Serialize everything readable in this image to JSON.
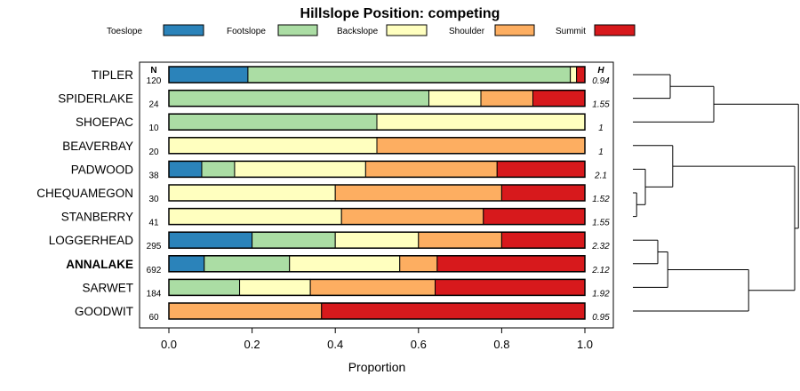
{
  "chart_data": {
    "type": "bar",
    "orientation": "horizontal",
    "stacked": true,
    "title": "Hillslope Position: competing",
    "xlabel": "Proportion",
    "ylabel": "",
    "xlim": [
      0,
      1
    ],
    "xticks": [
      "0.0",
      "0.2",
      "0.4",
      "0.6",
      "0.8",
      "1.0"
    ],
    "n_header": "N",
    "h_header": "H",
    "highlight": "ANNALAKE",
    "legend_position": "top",
    "series_names": [
      "Toeslope",
      "Footslope",
      "Backslope",
      "Shoulder",
      "Summit"
    ],
    "colors": [
      "#2b83ba",
      "#abdda4",
      "#ffffbf",
      "#fdae61",
      "#d7191c"
    ],
    "rows": [
      {
        "label": "TIPLER",
        "n": "120",
        "h": "0.94",
        "values": [
          0.19,
          0.775,
          0.015,
          0.0,
          0.02
        ]
      },
      {
        "label": "SPIDERLAKE",
        "n": "24",
        "h": "1.55",
        "values": [
          0.0,
          0.625,
          0.125,
          0.125,
          0.125
        ]
      },
      {
        "label": "SHOEPAC",
        "n": "10",
        "h": "1",
        "values": [
          0.0,
          0.5,
          0.5,
          0.0,
          0.0
        ]
      },
      {
        "label": "BEAVERBAY",
        "n": "20",
        "h": "1",
        "values": [
          0.0,
          0.0,
          0.5,
          0.5,
          0.0
        ]
      },
      {
        "label": "PADWOOD",
        "n": "38",
        "h": "2.1",
        "values": [
          0.079,
          0.079,
          0.315,
          0.316,
          0.211
        ]
      },
      {
        "label": "CHEQUAMEGON",
        "n": "30",
        "h": "1.52",
        "values": [
          0.0,
          0.0,
          0.4,
          0.4,
          0.2
        ]
      },
      {
        "label": "STANBERRY",
        "n": "41",
        "h": "1.55",
        "values": [
          0.0,
          0.0,
          0.415,
          0.341,
          0.244
        ]
      },
      {
        "label": "LOGGERHEAD",
        "n": "295",
        "h": "2.32",
        "values": [
          0.2,
          0.2,
          0.2,
          0.2,
          0.2
        ]
      },
      {
        "label": "ANNALAKE",
        "n": "692",
        "h": "2.12",
        "values": [
          0.085,
          0.205,
          0.265,
          0.09,
          0.355
        ]
      },
      {
        "label": "SARWET",
        "n": "184",
        "h": "1.92",
        "values": [
          0.0,
          0.17,
          0.17,
          0.3,
          0.36
        ]
      },
      {
        "label": "GOODWIT",
        "n": "60",
        "h": "0.95",
        "values": [
          0.0,
          0.0,
          0.0,
          0.367,
          0.633
        ]
      }
    ],
    "dendrogram": {
      "type": "hierarchical-clustering",
      "leaf_order": [
        "TIPLER",
        "SPIDERLAKE",
        "SHOEPAC",
        "BEAVERBAY",
        "PADWOOD",
        "CHEQUAMEGON",
        "STANBERRY",
        "LOGGERHEAD",
        "ANNALAKE",
        "SARWET",
        "GOODWIT"
      ],
      "merges": [
        {
          "a": "CHEQUAMEGON",
          "b": "STANBERRY",
          "height": 0.03
        },
        {
          "a": "LOGGERHEAD",
          "b": "ANNALAKE",
          "height": 0.2
        },
        {
          "a": "m1",
          "b": "SARWET",
          "height": 0.28
        },
        {
          "a": "PADWOOD",
          "b": "m0",
          "height": 0.1
        },
        {
          "a": "TIPLER",
          "b": "SPIDERLAKE",
          "height": 0.3
        },
        {
          "a": "SHOEPAC",
          "b": "m4",
          "height": 0.65
        },
        {
          "a": "BEAVERBAY",
          "b": "m3",
          "height": 0.32
        },
        {
          "a": "m2",
          "b": "GOODWIT",
          "height": 0.93
        },
        {
          "a": "m6",
          "b": "m7",
          "height": 1.3
        },
        {
          "a": "m5",
          "b": "m8",
          "height": 1.33
        }
      ]
    }
  }
}
